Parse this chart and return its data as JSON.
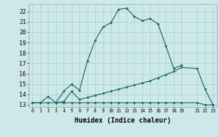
{
  "xlabel": "Humidex (Indice chaleur)",
  "bg_color": "#cce8e8",
  "grid_color": "#aacccc",
  "line_color": "#1a6b6b",
  "xlim": [
    -0.5,
    23.5
  ],
  "ylim": [
    12.8,
    22.7
  ],
  "yticks": [
    13,
    14,
    15,
    16,
    17,
    18,
    19,
    20,
    21,
    22
  ],
  "xtick_positions": [
    0,
    1,
    2,
    3,
    4,
    5,
    6,
    7,
    8,
    9,
    10,
    11,
    12,
    13,
    14,
    15,
    16,
    17,
    18,
    19,
    21,
    22,
    23
  ],
  "xtick_labels": [
    "0",
    "1",
    "2",
    "3",
    "4",
    "5",
    "6",
    "7",
    "8",
    "9",
    "10",
    "11",
    "12",
    "13",
    "14",
    "15",
    "16",
    "17",
    "18",
    "19",
    "21",
    "22",
    "23"
  ],
  "series1_x": [
    0,
    1,
    2,
    3,
    4,
    5,
    6,
    7,
    8,
    9,
    10,
    11,
    12,
    13,
    14,
    15,
    16,
    17,
    18,
    19
  ],
  "series1_y": [
    13.2,
    13.2,
    13.8,
    13.2,
    14.3,
    15.0,
    14.4,
    17.2,
    19.2,
    20.5,
    20.9,
    22.2,
    22.3,
    21.5,
    21.1,
    21.3,
    20.8,
    18.7,
    16.5,
    16.8
  ],
  "series2_x": [
    3,
    4,
    5,
    6,
    7,
    8,
    9,
    10,
    11,
    12,
    13,
    14,
    15,
    16,
    17,
    18,
    19,
    21,
    22,
    23
  ],
  "series2_y": [
    13.2,
    13.3,
    14.3,
    13.5,
    13.7,
    13.9,
    14.1,
    14.3,
    14.5,
    14.7,
    14.9,
    15.1,
    15.3,
    15.6,
    15.9,
    16.2,
    16.6,
    16.5,
    14.5,
    13.0
  ],
  "series3_x": [
    0,
    1,
    2,
    3,
    4,
    5,
    6,
    7,
    8,
    9,
    10,
    11,
    12,
    13,
    14,
    15,
    16,
    17,
    18,
    19,
    21,
    22,
    23
  ],
  "series3_y": [
    13.2,
    13.2,
    13.2,
    13.2,
    13.2,
    13.2,
    13.2,
    13.2,
    13.2,
    13.2,
    13.2,
    13.2,
    13.2,
    13.2,
    13.2,
    13.2,
    13.2,
    13.2,
    13.2,
    13.2,
    13.2,
    13.0,
    13.0
  ]
}
